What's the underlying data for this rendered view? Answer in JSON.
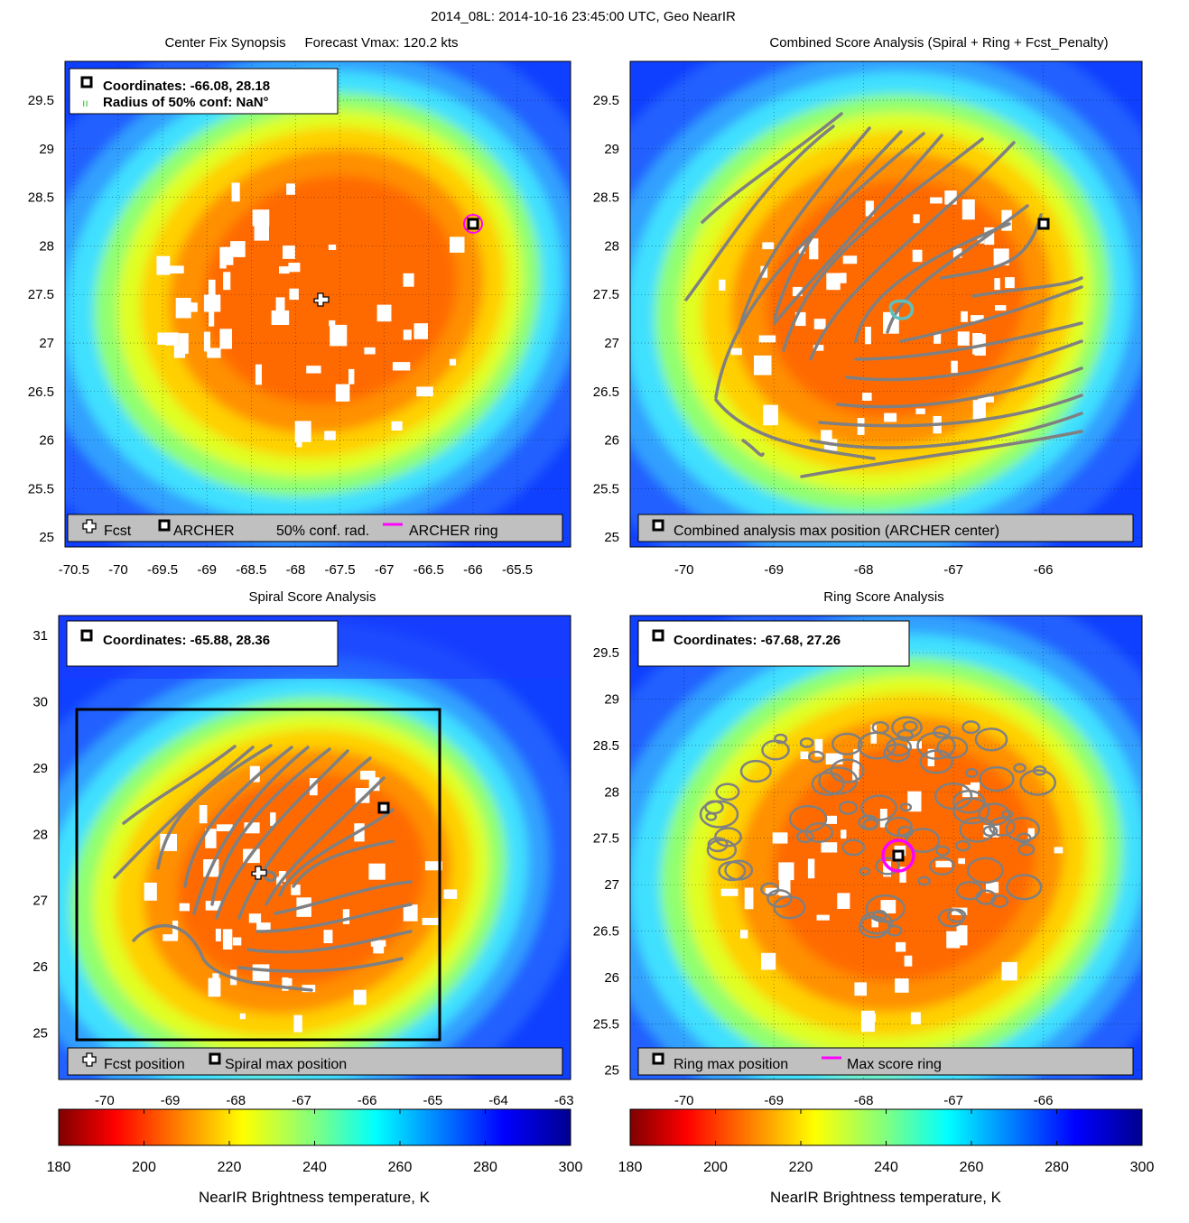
{
  "figure": {
    "title": "2014_08L: 2014-10-16 23:45:00 UTC, Geo NearIR"
  },
  "colors": {
    "jet": [
      "#7f0000",
      "#ff0000",
      "#ff8000",
      "#ffff00",
      "#80ff80",
      "#00ffff",
      "#0080ff",
      "#0000ff",
      "#00008f"
    ],
    "contour": "#808080",
    "ring": "#ff00ff",
    "legend_bg": "#c0c0c0"
  },
  "icons": {
    "fcst": "white-cross-icon",
    "archer": "black-square-marker-icon",
    "conf": "green-dotted-ring-icon",
    "ring": "magenta-line-icon"
  },
  "panels": [
    {
      "title": "Center Fix Synopsis     Forecast Vmax: 120.2 kts",
      "info": [
        "Coordinates: -66.08, 28.18",
        "Radius of 50% conf: NaN°"
      ],
      "legend": [
        "Fcst",
        "ARCHER",
        "50% conf. rad.",
        "ARCHER ring"
      ]
    },
    {
      "title": "Combined Score Analysis (Spiral + Ring + Fcst_Penalty)",
      "legend": [
        "Combined analysis max position (ARCHER center)"
      ]
    },
    {
      "title": "Spiral Score Analysis",
      "info": [
        "Coordinates: -65.88, 28.36"
      ],
      "legend": [
        "Fcst position",
        "Spiral max position"
      ]
    },
    {
      "title": "Ring Score Analysis",
      "info": [
        "Coordinates: -67.68, 27.26"
      ],
      "legend": [
        "Ring max position",
        "Max score ring"
      ]
    }
  ],
  "colorbars": [
    {
      "label": "NearIR Brightness temperature, K",
      "ticks": [
        "180",
        "200",
        "220",
        "240",
        "260",
        "280",
        "300"
      ],
      "range": [
        180,
        300
      ]
    },
    {
      "label": "NearIR Brightness temperature, K",
      "ticks": [
        "180",
        "200",
        "220",
        "240",
        "260",
        "280",
        "300"
      ],
      "range": [
        180,
        300
      ]
    }
  ],
  "chart_data": [
    {
      "type": "heatmap",
      "title": "Center Fix Synopsis     Forecast Vmax: 120.2 kts",
      "xlim": [
        -70.6,
        -64.9
      ],
      "ylim": [
        24.9,
        29.9
      ],
      "xticks": [
        "-70.5",
        "-70",
        "-69.5",
        "-69",
        "-68.5",
        "-68",
        "-67.5",
        "-67",
        "-66.5",
        "-66",
        "-65.5"
      ],
      "yticks": [
        "25",
        "25.5",
        "26",
        "26.5",
        "27",
        "27.5",
        "28",
        "28.5",
        "29",
        "29.5"
      ],
      "grid": true,
      "fcst_position": [
        -67.8,
        27.37
      ],
      "archer_center": [
        -66.08,
        28.18
      ],
      "legend_position": "bottom"
    },
    {
      "type": "heatmap",
      "title": "Combined Score Analysis (Spiral + Ring + Fcst_Penalty)",
      "xlim": [
        -70.6,
        -64.9
      ],
      "ylim": [
        24.9,
        29.9
      ],
      "xticks": [
        "-70",
        "-69",
        "-68",
        "-67",
        "-66"
      ],
      "yticks": [
        "25",
        "25.5",
        "26",
        "26.5",
        "27",
        "27.5",
        "28",
        "28.5",
        "29",
        "29.5"
      ],
      "grid": true,
      "max_position": [
        -66.08,
        28.18
      ],
      "legend_position": "bottom"
    },
    {
      "type": "heatmap",
      "title": "Spiral Score Analysis",
      "xlim": [
        -70.7,
        -62.9
      ],
      "ylim": [
        24.3,
        31.3
      ],
      "xticks": [
        "-70",
        "-69",
        "-68",
        "-67",
        "-66",
        "-65",
        "-64",
        "-63"
      ],
      "yticks": [
        "25",
        "26",
        "27",
        "28",
        "29",
        "30",
        "31"
      ],
      "grid": false,
      "fcst_position": [
        -67.8,
        27.37
      ],
      "max_position": [
        -65.88,
        28.36
      ],
      "search_box": {
        "lon": [
          -70.5,
          -65.0
        ],
        "lat": [
          24.9,
          29.85
        ]
      },
      "legend_position": "bottom"
    },
    {
      "type": "heatmap",
      "title": "Ring Score Analysis",
      "xlim": [
        -70.6,
        -64.9
      ],
      "ylim": [
        24.9,
        29.9
      ],
      "xticks": [
        "-70",
        "-69",
        "-68",
        "-67",
        "-66"
      ],
      "yticks": [
        "25",
        "25.5",
        "26",
        "26.5",
        "27",
        "27.5",
        "28",
        "28.5",
        "29",
        "29.5"
      ],
      "grid": true,
      "max_position": [
        -67.68,
        27.26
      ],
      "legend_position": "bottom"
    }
  ]
}
